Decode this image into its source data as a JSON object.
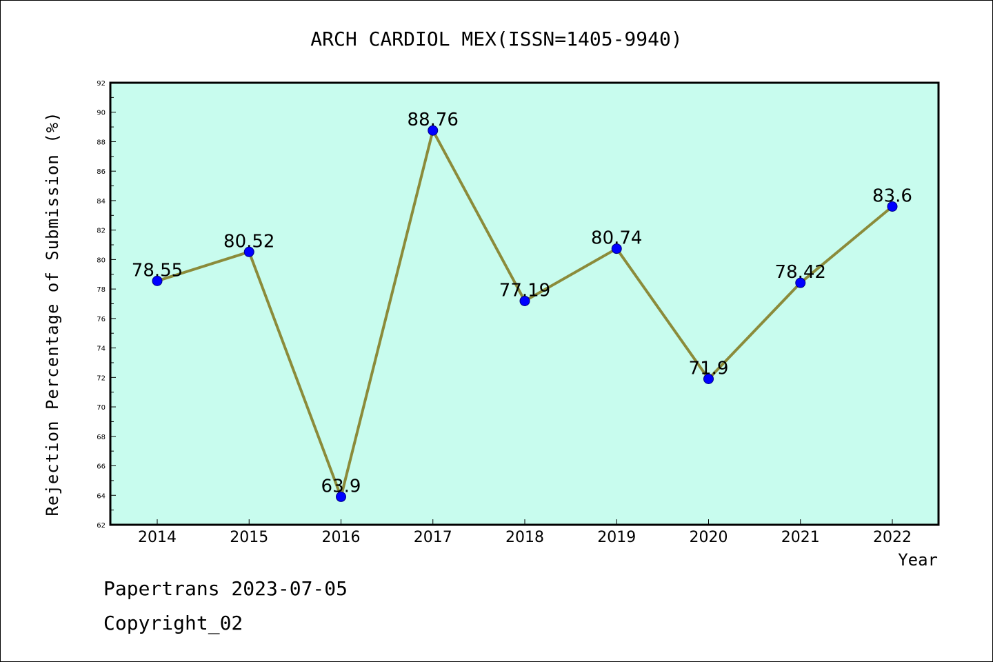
{
  "footer": {
    "line1": "Papertrans 2023-07-05",
    "line2": "Copyright_02"
  },
  "chart_data": {
    "type": "line",
    "title": "ARCH CARDIOL MEX(ISSN=1405-9940)",
    "xlabel": "Year",
    "ylabel": "Rejection Percentage of Submission (%)",
    "categories": [
      "2014",
      "2015",
      "2016",
      "2017",
      "2018",
      "2019",
      "2020",
      "2021",
      "2022"
    ],
    "values": [
      78.55,
      80.52,
      63.9,
      88.76,
      77.19,
      80.74,
      71.9,
      78.42,
      83.6
    ],
    "ylim": [
      62,
      92
    ],
    "yticks": [
      "62",
      "64",
      "66",
      "68",
      "70",
      "72",
      "74",
      "76",
      "78",
      "80",
      "82",
      "84",
      "86",
      "88",
      "90",
      "92"
    ],
    "grid": false,
    "colors": {
      "plot_background": "#c8fcee",
      "line": "#8b8b3a",
      "marker": "#0000ff"
    }
  }
}
